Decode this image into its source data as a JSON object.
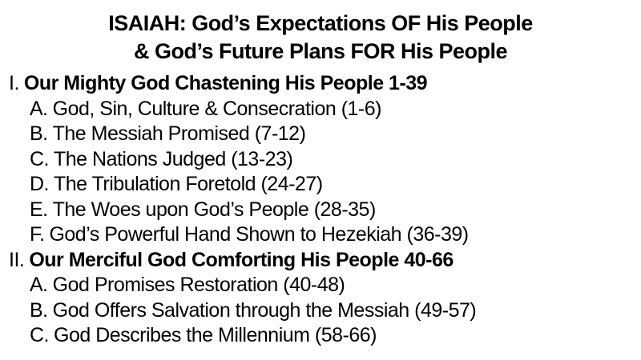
{
  "slide": {
    "colors": {
      "background": "#ffffff",
      "text": "#000000"
    },
    "title": {
      "line1": "ISAIAH: God’s Expectations OF His People",
      "line2": "& God’s Future Plans FOR His People"
    },
    "outline": [
      {
        "level": 1,
        "prefix": "I.",
        "text": "Our Mighty God Chastening His People 1-39"
      },
      {
        "level": 2,
        "prefix": "A.",
        "text": "God, Sin, Culture & Consecration (1-6)"
      },
      {
        "level": 2,
        "prefix": "B.",
        "text": "The Messiah Promised (7-12)"
      },
      {
        "level": 2,
        "prefix": "C.",
        "text": "The Nations Judged (13-23)"
      },
      {
        "level": 2,
        "prefix": "D.",
        "text": "The Tribulation Foretold (24-27)"
      },
      {
        "level": 2,
        "prefix": "E.",
        "text": "The Woes upon God’s People (28-35)"
      },
      {
        "level": 2,
        "prefix": "F.",
        "text": "God’s Powerful Hand Shown to Hezekiah (36-39)"
      },
      {
        "level": 1,
        "prefix": "II.",
        "text": "Our Merciful God Comforting His People 40-66"
      },
      {
        "level": 2,
        "prefix": "A.",
        "text": "God Promises Restoration (40-48)"
      },
      {
        "level": 2,
        "prefix": "B.",
        "text": "God Offers Salvation through the Messiah (49-57)"
      },
      {
        "level": 2,
        "prefix": "C.",
        "text": "God Describes the Millennium (58-66)"
      }
    ]
  }
}
